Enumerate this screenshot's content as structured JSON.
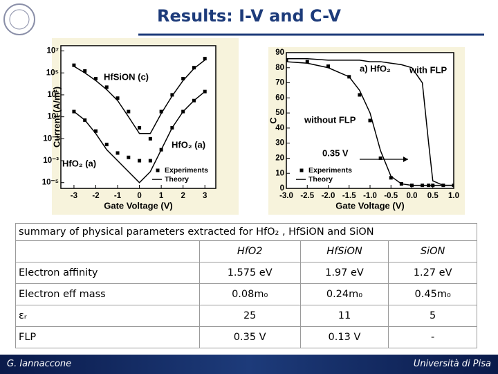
{
  "header": {
    "title": "Results: I-V and C-V"
  },
  "chart_data": [
    {
      "type": "line",
      "log_y": true,
      "xlabel": "Gate Voltage (V)",
      "ylabel": "Current (A/m²)",
      "xlim": [
        -3.6,
        3.5
      ],
      "ylim": [
        3e-06,
        30000000
      ],
      "xticks": [
        -3,
        -2,
        -1,
        0,
        1,
        2,
        3
      ],
      "yticks": [
        {
          "value": 1e-05,
          "label": "10⁻⁵"
        },
        {
          "value": 0.001,
          "label": "10⁻³"
        },
        {
          "value": 0.1,
          "label": "10⁻¹"
        },
        {
          "value": 10,
          "label": "10¹"
        },
        {
          "value": 1000,
          "label": "10³"
        },
        {
          "value": 100000,
          "label": "10⁵"
        },
        {
          "value": 10000000,
          "label": "10⁷"
        }
      ],
      "x": [
        -3,
        -2.5,
        -2,
        -1.5,
        -1,
        -0.5,
        0,
        0.5,
        1,
        1.5,
        2,
        2.5,
        3
      ],
      "curves": [
        {
          "label": "HfSiON (c)",
          "color": "#000000",
          "experiments": [
            500000,
            150000,
            30000,
            5000,
            500,
            30,
            1,
            0.1,
            30,
            1000,
            30000,
            300000,
            2000000
          ],
          "theory": [
            400000,
            100000,
            20000,
            3000,
            300,
            10,
            0.3,
            0.3,
            20,
            800,
            20000,
            250000,
            1500000
          ]
        },
        {
          "label": "HfO₂ (a)",
          "color": "#000000",
          "experiments": [
            30,
            5,
            0.5,
            0.03,
            0.005,
            0.002,
            0.001,
            0.001,
            0.01,
            1,
            30,
            300,
            2000
          ],
          "theory": [
            30,
            5,
            0.3,
            0.01,
            0.001,
            0.0001,
            1e-05,
            0.0001,
            0.01,
            1,
            30,
            300,
            2000
          ]
        }
      ],
      "annotations": [
        "HfO₂ (a)"
      ],
      "legend": [
        "Experiments",
        "Theory"
      ]
    },
    {
      "type": "line",
      "xlabel": "Gate Voltage (V)",
      "ylabel": "C",
      "xlim": [
        -3,
        1
      ],
      "ylim": [
        0,
        90
      ],
      "xticks": [
        {
          "value": -3,
          "label": "-3.0"
        },
        -2.5,
        {
          "value": -2,
          "label": "-2.0"
        },
        -1.5,
        {
          "value": -1,
          "label": "-1.0"
        },
        -0.5,
        {
          "value": 0,
          "label": "0.0"
        },
        0.5,
        {
          "value": 1,
          "label": "1.0"
        }
      ],
      "yticks": [
        0,
        10,
        20,
        30,
        40,
        50,
        60,
        70,
        80,
        90
      ],
      "x": [
        -3,
        -2.5,
        -2,
        -1.5,
        -1.25,
        -1,
        -0.75,
        -0.5,
        -0.25,
        0,
        0.25,
        0.4,
        0.5,
        0.75,
        1
      ],
      "curves": [
        {
          "label": "without FLP",
          "color": "#000000",
          "experiments": [
            85,
            84,
            81,
            74,
            62,
            45,
            20,
            7,
            3,
            2,
            2,
            2,
            2,
            2,
            2
          ],
          "theory": [
            84,
            83,
            80,
            74,
            65,
            50,
            25,
            8,
            3,
            2,
            2,
            2,
            2,
            2,
            2
          ]
        },
        {
          "label": "with FLP",
          "color": "#000000",
          "theory": [
            86,
            86,
            85,
            85,
            85,
            84,
            84,
            83,
            82,
            80,
            70,
            30,
            5,
            2,
            2
          ]
        }
      ],
      "annotations": [
        "a) HfO₂",
        "0.35 V"
      ],
      "legend": [
        "Experiments",
        "Theory"
      ]
    }
  ],
  "table": {
    "title": "summary of  physical parameters extracted for HfO₂ , HfSiON and SiON",
    "headers": [
      "HfO2",
      "HfSiON",
      "SiON"
    ],
    "rows": [
      [
        "Electron affinity",
        "1.575 eV",
        "1.97 eV",
        "1.27 eV"
      ],
      [
        "Electron eff mass",
        "0.08m₀",
        "0.24m₀",
        "0.45m₀"
      ],
      [
        "εᵣ",
        "25",
        "11",
        "5"
      ],
      [
        "FLP",
        "0.35 V",
        "0.13 V",
        "-"
      ]
    ]
  },
  "footer": {
    "author": "G. Iannaccone",
    "institution": "Università di Pisa"
  }
}
